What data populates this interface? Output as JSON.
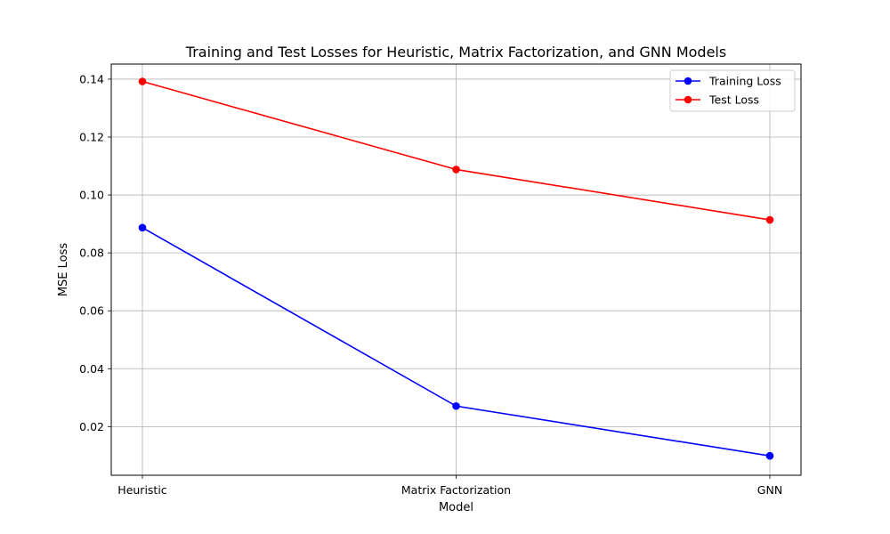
{
  "chart_data": {
    "type": "line",
    "title": "Training and Test Losses for Heuristic, Matrix Factorization, and GNN Models",
    "xlabel": "Model",
    "ylabel": "MSE Loss",
    "categories": [
      "Heuristic",
      "Matrix Factorization",
      "GNN"
    ],
    "ylim": [
      0.0032,
      0.1452
    ],
    "yticks": [
      0.02,
      0.04,
      0.06,
      0.08,
      0.1,
      0.12,
      0.14
    ],
    "ytick_labels": [
      "0.02",
      "0.04",
      "0.06",
      "0.08",
      "0.10",
      "0.12",
      "0.14"
    ],
    "grid": true,
    "legend_position": "top-right",
    "series": [
      {
        "name": "Training Loss",
        "color": "#0000ff",
        "marker": "circle",
        "values": [
          0.0887,
          0.0271,
          0.0099
        ]
      },
      {
        "name": "Test Loss",
        "color": "#ff0000",
        "marker": "circle",
        "values": [
          0.1392,
          0.1088,
          0.0914
        ]
      }
    ]
  }
}
